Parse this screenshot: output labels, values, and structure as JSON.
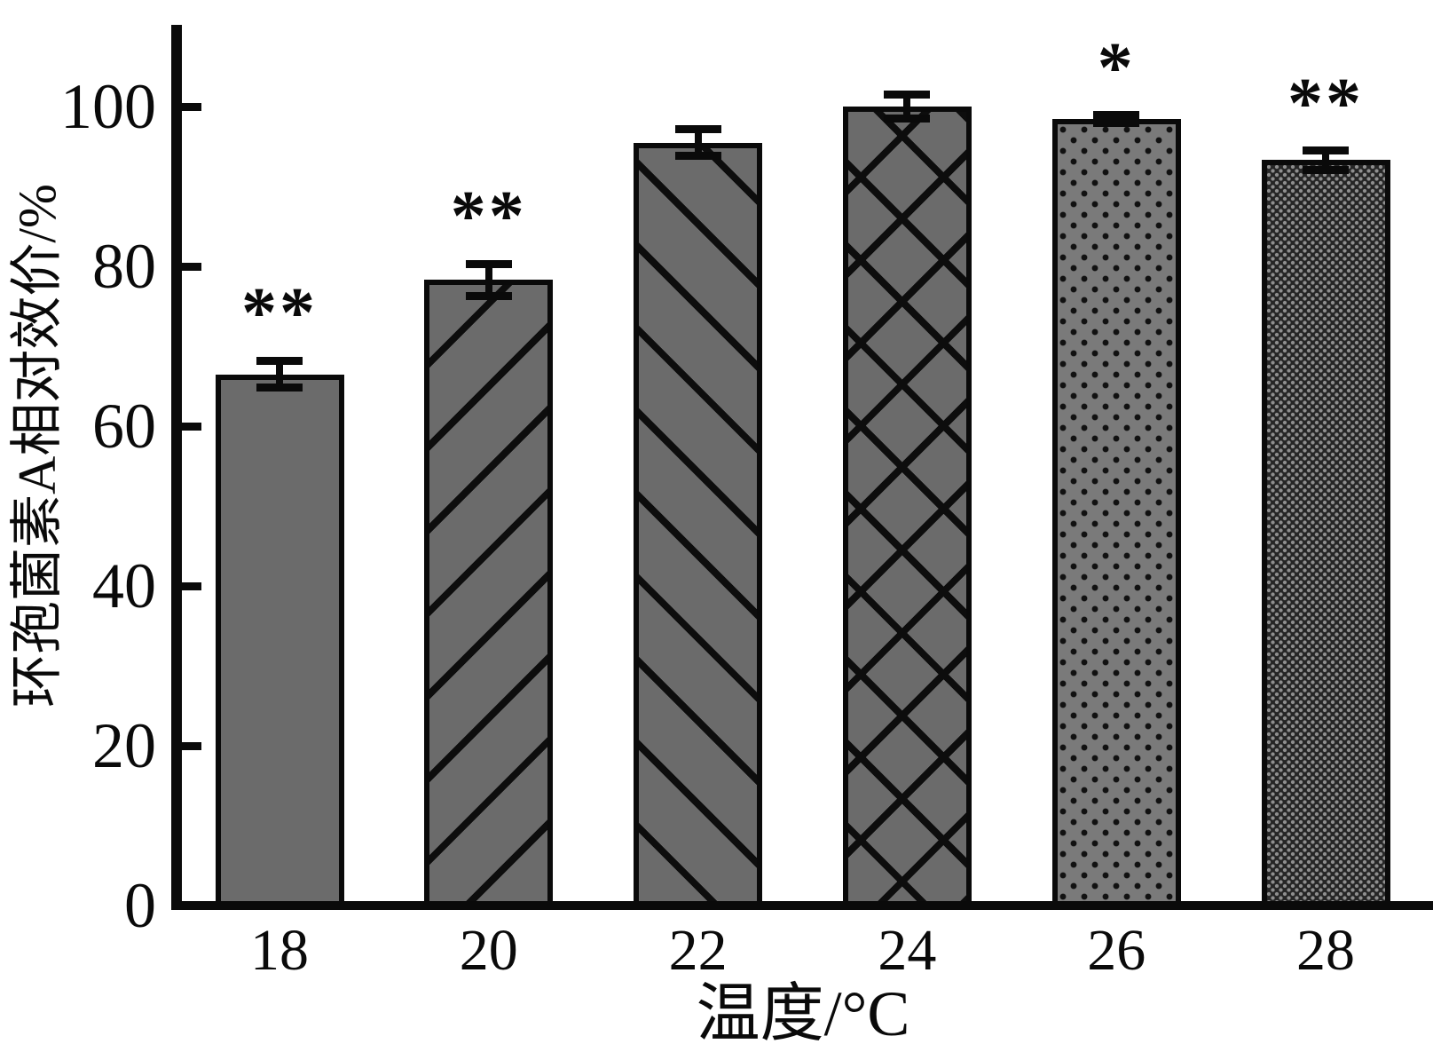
{
  "chart_data": {
    "type": "bar",
    "title": "",
    "xlabel": "温度/°C",
    "ylabel": "环孢菌素A相对效价/%",
    "categories": [
      "18",
      "20",
      "22",
      "24",
      "26",
      "28"
    ],
    "values": [
      66.5,
      78.3,
      95.5,
      100.0,
      98.4,
      93.3
    ],
    "error_bars": [
      1.7,
      2.0,
      1.7,
      1.5,
      0.5,
      1.2
    ],
    "significance": [
      "**",
      "**",
      "",
      "",
      "*",
      "**"
    ],
    "bar_patterns": [
      "solid-gray",
      "diagonal-up-hatch",
      "diagonal-down-hatch",
      "crosshatch",
      "sparse-dots",
      "dense-dots-dark"
    ],
    "yticks": [
      0,
      20,
      40,
      60,
      80,
      100
    ],
    "ylim": [
      0,
      110
    ],
    "grid": false,
    "legend_position": "none",
    "colors": {
      "bar_fill": "#6b6b6b",
      "dark_bar_fill": "#262626",
      "hatch_and_line": "#0a0a0a",
      "background": "#ffffff"
    }
  }
}
